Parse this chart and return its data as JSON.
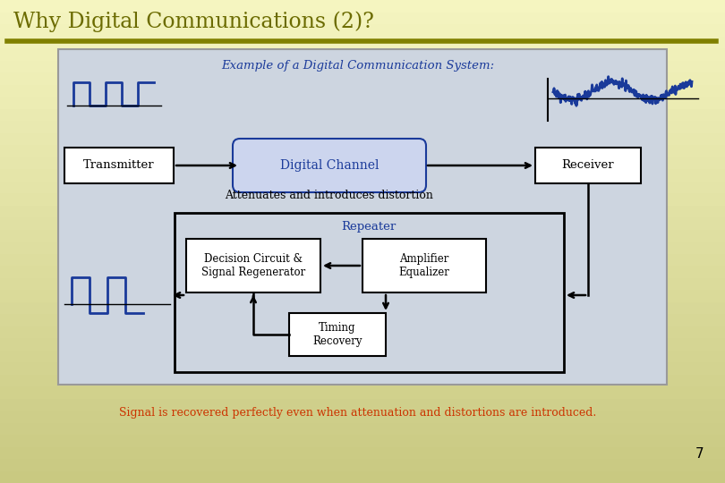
{
  "title": "Why Digital Communications (2)?",
  "title_color": "#6b6b00",
  "title_fontsize": 17,
  "bg_color_top": "#f5f5c0",
  "bg_color_bottom": "#b8b878",
  "main_box_bg": "#cdd5e0",
  "repeater_box_bg": "#cdd5e0",
  "header_text": "Example of a Digital Communication System:",
  "header_color": "#1a3a9a",
  "transmitter_label": "Transmitter",
  "channel_label": "Digital Channel",
  "receiver_label": "Receiver",
  "attenuates_label": "Attenuates and introduces distortion",
  "repeater_label": "Repeater",
  "decision_label": "Decision Circuit &\nSignal Regenerator",
  "amplifier_label": "Amplifier\nEqualizer",
  "timing_label": "Timing\nRecovery",
  "bottom_text": "Signal is recovered perfectly even when attenuation and distortions are introduced.",
  "bottom_text_color": "#cc3300",
  "page_number": "7",
  "box_text_color": "#000000",
  "blue_color": "#1a3a9a",
  "signal_color": "#1a3a9a",
  "arrow_color": "#000000",
  "box_edge_color": "#000000",
  "divider_color": "#808000",
  "white_box": "#ffffff"
}
